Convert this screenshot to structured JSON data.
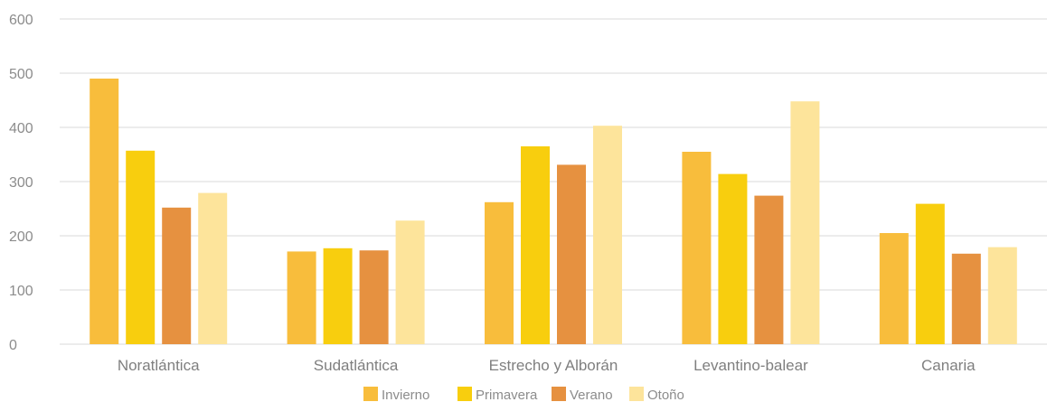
{
  "chart_data": {
    "type": "bar",
    "categories": [
      "Noratlántica",
      "Sudatlántica",
      "Estrecho y Alborán",
      "Levantino-balear",
      "Canaria"
    ],
    "series": [
      {
        "name": "Invierno",
        "color": "#F8BD3C",
        "values": [
          490,
          171,
          262,
          355,
          205
        ]
      },
      {
        "name": "Primavera",
        "color": "#F8CE0E",
        "values": [
          357,
          177,
          365,
          314,
          259
        ]
      },
      {
        "name": "Verano",
        "color": "#E69140",
        "values": [
          252,
          173,
          331,
          274,
          167
        ]
      },
      {
        "name": "Otoño",
        "color": "#FDE49B",
        "values": [
          279,
          228,
          403,
          448,
          179
        ]
      }
    ],
    "ylim": [
      0,
      600
    ],
    "yticks": [
      0,
      100,
      200,
      300,
      400,
      500,
      600
    ],
    "grid": true,
    "legend": "bottom"
  }
}
